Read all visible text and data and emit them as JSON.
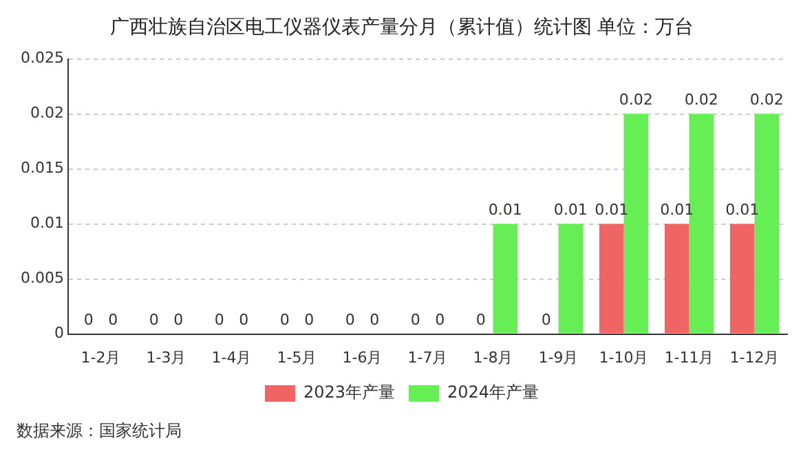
{
  "chart_data": {
    "type": "bar",
    "title": "广西壮族自治区电工仪器仪表产量分月（累计值）统计图 单位：万台",
    "categories": [
      "1-2月",
      "1-3月",
      "1-4月",
      "1-5月",
      "1-6月",
      "1-7月",
      "1-8月",
      "1-9月",
      "1-10月",
      "1-11月",
      "1-12月"
    ],
    "series": [
      {
        "name": "2023年产量",
        "color": "#f06464",
        "values": [
          0,
          0,
          0,
          0,
          0,
          0,
          0,
          0,
          0.01,
          0.01,
          0.01
        ]
      },
      {
        "name": "2024年产量",
        "color": "#66ee55",
        "values": [
          0,
          0,
          0,
          0,
          0,
          0,
          0.01,
          0.01,
          0.02,
          0.02,
          0.02
        ]
      }
    ],
    "ylim": [
      0,
      0.025
    ],
    "yticks": [
      0,
      0.005,
      0.01,
      0.015,
      0.02,
      0.025
    ],
    "grid": "y",
    "legend": "bottom",
    "data_labels": true,
    "annotations": [
      "数据来源：国家统计局"
    ]
  }
}
